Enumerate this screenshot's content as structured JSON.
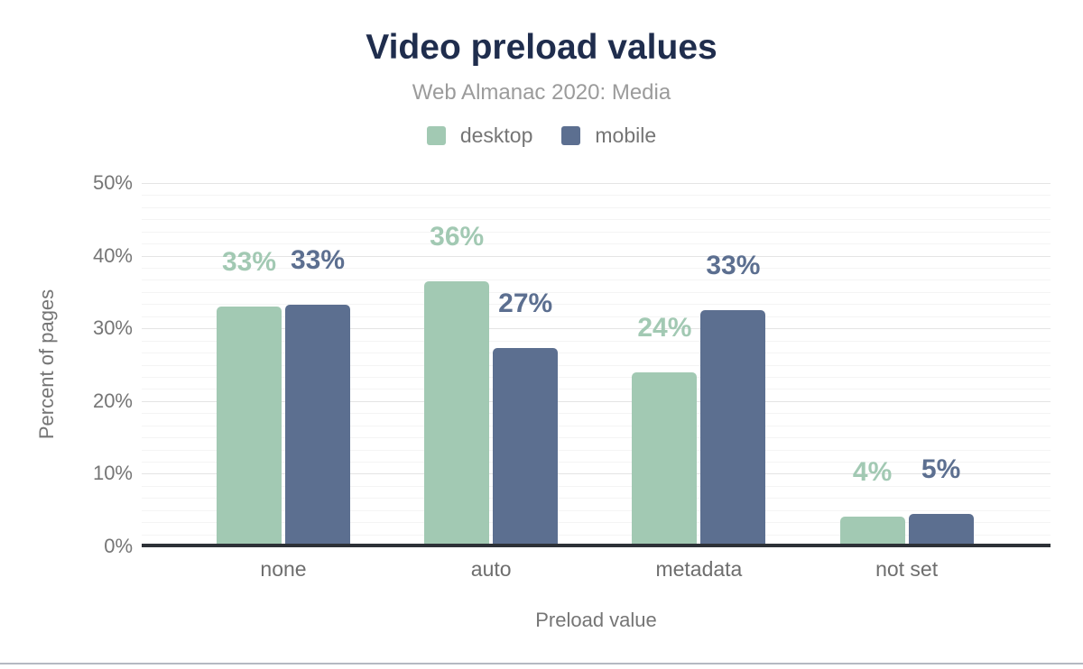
{
  "title": "Video preload values",
  "subtitle": "Web Almanac 2020: Media",
  "x_axis_title": "Preload value",
  "y_axis_title": "Percent of pages",
  "chart_data": {
    "type": "bar",
    "title": "Video preload values",
    "subtitle": "Web Almanac 2020: Media",
    "categories": [
      "none",
      "auto",
      "metadata",
      "not set"
    ],
    "series": [
      {
        "name": "desktop",
        "color": "#a2c9b3",
        "values": [
          33,
          36,
          24,
          4
        ],
        "bar_heights_pct": [
          33.0,
          36.5,
          23.9,
          4.1
        ]
      },
      {
        "name": "mobile",
        "color": "#5c6f90",
        "values": [
          33,
          27,
          33,
          5
        ],
        "bar_heights_pct": [
          33.3,
          27.3,
          32.5,
          4.5
        ]
      }
    ],
    "value_label_suffix": "%",
    "xlabel": "Preload value",
    "ylabel": "Percent of pages",
    "ylim": [
      0,
      50
    ],
    "yticks": [
      0,
      10,
      20,
      30,
      40,
      50
    ],
    "ytick_suffix": "%",
    "grid": "horizontal, major every 10% with 5 minor lines between",
    "legend_position": "top",
    "bar_corner": "rounded-top"
  },
  "colors": {
    "title": "#1f2d4d",
    "subtitle": "#9b9b9b",
    "axis_text": "#757575",
    "category_text": "#6e6e6e",
    "desktop": "#a2c9b3",
    "mobile": "#5c6f90",
    "baseline": "#2d3137",
    "grid_major": "#e4e4e4",
    "grid_minor": "#f4f4f4",
    "footer_rule": "#b4b9c2"
  }
}
